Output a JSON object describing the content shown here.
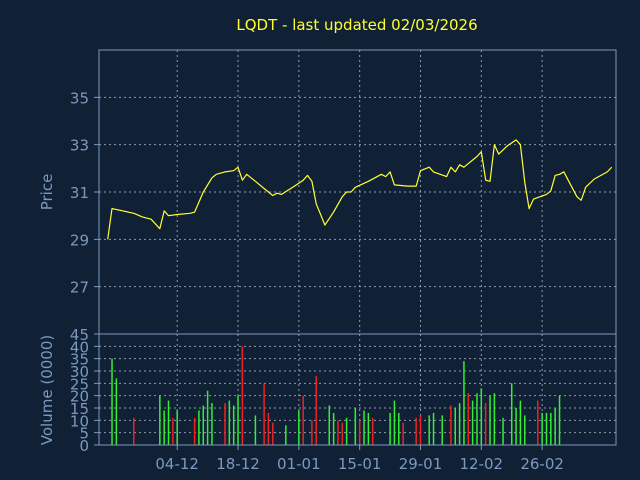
{
  "chart_data": [
    {
      "type": "line",
      "title": "LQDT - last updated 02/03/2026",
      "ylabel": "Price",
      "ylim": [
        25,
        37
      ],
      "yticks": [
        27,
        29,
        31,
        33,
        35
      ],
      "grid": true,
      "line_color": "#ffff33",
      "series": [
        {
          "points": [
            [
              "2025-11-18",
              29.0
            ],
            [
              "2025-11-19",
              30.3
            ],
            [
              "2025-11-24",
              30.1
            ],
            [
              "2025-11-26",
              29.95
            ],
            [
              "2025-11-28",
              29.85
            ],
            [
              "2025-11-30",
              29.45
            ],
            [
              "2025-12-01",
              30.2
            ],
            [
              "2025-12-02",
              30.0
            ],
            [
              "2025-12-04",
              30.05
            ],
            [
              "2025-12-07",
              30.1
            ],
            [
              "2025-12-08",
              30.15
            ],
            [
              "2025-12-10",
              31.0
            ],
            [
              "2025-12-12",
              31.6
            ],
            [
              "2025-12-13",
              31.75
            ],
            [
              "2025-12-15",
              31.85
            ],
            [
              "2025-12-17",
              31.9
            ],
            [
              "2025-12-18",
              32.05
            ],
            [
              "2025-12-19",
              31.5
            ],
            [
              "2025-12-20",
              31.75
            ],
            [
              "2025-12-22",
              31.45
            ],
            [
              "2025-12-24",
              31.15
            ],
            [
              "2025-12-26",
              30.85
            ],
            [
              "2025-12-27",
              30.95
            ],
            [
              "2025-12-28",
              30.9
            ],
            [
              "2025-12-31",
              31.25
            ],
            [
              "2026-01-02",
              31.5
            ],
            [
              "2026-01-03",
              31.7
            ],
            [
              "2026-01-04",
              31.45
            ],
            [
              "2026-01-05",
              30.5
            ],
            [
              "2026-01-06",
              30.05
            ],
            [
              "2026-01-07",
              29.6
            ],
            [
              "2026-01-09",
              30.15
            ],
            [
              "2026-01-11",
              30.8
            ],
            [
              "2026-01-12",
              31.0
            ],
            [
              "2026-01-13",
              31.0
            ],
            [
              "2026-01-14",
              31.2
            ],
            [
              "2026-01-17",
              31.45
            ],
            [
              "2026-01-20",
              31.75
            ],
            [
              "2026-01-21",
              31.65
            ],
            [
              "2026-01-22",
              31.85
            ],
            [
              "2026-01-23",
              31.3
            ],
            [
              "2026-01-26",
              31.25
            ],
            [
              "2026-01-28",
              31.25
            ],
            [
              "2026-01-29",
              31.9
            ],
            [
              "2026-01-31",
              32.05
            ],
            [
              "2026-02-01",
              31.85
            ],
            [
              "2026-02-04",
              31.65
            ],
            [
              "2026-02-05",
              32.05
            ],
            [
              "2026-02-06",
              31.85
            ],
            [
              "2026-02-07",
              32.15
            ],
            [
              "2026-02-08",
              32.05
            ],
            [
              "2026-02-11",
              32.5
            ],
            [
              "2026-02-12",
              32.7
            ],
            [
              "2026-02-13",
              31.5
            ],
            [
              "2026-02-14",
              31.45
            ],
            [
              "2026-02-15",
              33.0
            ],
            [
              "2026-02-16",
              32.6
            ],
            [
              "2026-02-18",
              32.95
            ],
            [
              "2026-02-20",
              33.2
            ],
            [
              "2026-02-21",
              33.0
            ],
            [
              "2026-02-22",
              31.4
            ],
            [
              "2026-02-23",
              30.3
            ],
            [
              "2026-02-24",
              30.7
            ],
            [
              "2026-02-27",
              30.9
            ],
            [
              "2026-02-28",
              31.05
            ],
            [
              "2026-03-01",
              31.7
            ],
            [
              "2026-03-02",
              31.75
            ],
            [
              "2026-03-03",
              31.85
            ],
            [
              "2026-03-04",
              31.5
            ],
            [
              "2026-03-06",
              30.8
            ],
            [
              "2026-03-07",
              30.65
            ],
            [
              "2026-03-08",
              31.2
            ],
            [
              "2026-03-10",
              31.55
            ],
            [
              "2026-03-13",
              31.85
            ],
            [
              "2026-03-14",
              32.05
            ]
          ]
        }
      ]
    },
    {
      "type": "bar",
      "ylabel": "Volume (0000)",
      "ylim": [
        0,
        45
      ],
      "yticks": [
        0,
        5,
        10,
        15,
        20,
        25,
        30,
        35,
        40,
        45
      ],
      "grid": true,
      "up_color": "#33ee33",
      "down_color": "#ee2222",
      "bars": [
        [
          "2025-11-19",
          35,
          "up"
        ],
        [
          "2025-11-20",
          27,
          "up"
        ],
        [
          "2025-11-24",
          11,
          "down"
        ],
        [
          "2025-11-30",
          20,
          "up"
        ],
        [
          "2025-12-01",
          14,
          "up"
        ],
        [
          "2025-12-02",
          18,
          "up"
        ],
        [
          "2025-12-03",
          11,
          "down"
        ],
        [
          "2025-12-04",
          14,
          "up"
        ],
        [
          "2025-12-08",
          11,
          "down"
        ],
        [
          "2025-12-09",
          14,
          "up"
        ],
        [
          "2025-12-10",
          16,
          "up"
        ],
        [
          "2025-12-11",
          22,
          "up"
        ],
        [
          "2025-12-12",
          17,
          "up"
        ],
        [
          "2025-12-15",
          17,
          "down"
        ],
        [
          "2025-12-16",
          18,
          "up"
        ],
        [
          "2025-12-17",
          16,
          "up"
        ],
        [
          "2025-12-18",
          20,
          "up"
        ],
        [
          "2025-12-19",
          40,
          "down"
        ],
        [
          "2025-12-22",
          12,
          "up"
        ],
        [
          "2025-12-24",
          25,
          "down"
        ],
        [
          "2025-12-25",
          13,
          "down"
        ],
        [
          "2025-12-26",
          9,
          "down"
        ],
        [
          "2025-12-29",
          8,
          "up"
        ],
        [
          "2026-01-01",
          14,
          "up"
        ],
        [
          "2026-01-02",
          20,
          "down"
        ],
        [
          "2026-01-04",
          10,
          "down"
        ],
        [
          "2026-01-05",
          28,
          "down"
        ],
        [
          "2026-01-08",
          16,
          "up"
        ],
        [
          "2026-01-09",
          13,
          "up"
        ],
        [
          "2026-01-10",
          10,
          "down"
        ],
        [
          "2026-01-11",
          9,
          "down"
        ],
        [
          "2026-01-12",
          11,
          "up"
        ],
        [
          "2026-01-14",
          15,
          "up"
        ],
        [
          "2026-01-15",
          10,
          "down"
        ],
        [
          "2026-01-16",
          14,
          "up"
        ],
        [
          "2026-01-17",
          13,
          "up"
        ],
        [
          "2026-01-18",
          11,
          "down"
        ],
        [
          "2026-01-22",
          13,
          "up"
        ],
        [
          "2026-01-23",
          18,
          "up"
        ],
        [
          "2026-01-24",
          13,
          "up"
        ],
        [
          "2026-01-25",
          9,
          "down"
        ],
        [
          "2026-01-28",
          11,
          "down"
        ],
        [
          "2026-01-29",
          12,
          "down"
        ],
        [
          "2026-01-31",
          12,
          "up"
        ],
        [
          "2026-02-01",
          13,
          "up"
        ],
        [
          "2026-02-03",
          12,
          "up"
        ],
        [
          "2026-02-05",
          16,
          "down"
        ],
        [
          "2026-02-06",
          15,
          "up"
        ],
        [
          "2026-02-07",
          17,
          "up"
        ],
        [
          "2026-02-08",
          34,
          "up"
        ],
        [
          "2026-02-09",
          21,
          "down"
        ],
        [
          "2026-02-10",
          18,
          "up"
        ],
        [
          "2026-02-11",
          21,
          "up"
        ],
        [
          "2026-02-12",
          23,
          "up"
        ],
        [
          "2026-02-13",
          17,
          "down"
        ],
        [
          "2026-02-14",
          20,
          "up"
        ],
        [
          "2026-02-15",
          21,
          "up"
        ],
        [
          "2026-02-17",
          11,
          "up"
        ],
        [
          "2026-02-19",
          25,
          "up"
        ],
        [
          "2026-02-20",
          15,
          "up"
        ],
        [
          "2026-02-21",
          18,
          "up"
        ],
        [
          "2026-02-22",
          12,
          "up"
        ],
        [
          "2026-02-25",
          18,
          "down"
        ],
        [
          "2026-02-26",
          13,
          "up"
        ],
        [
          "2026-02-27",
          13,
          "up"
        ],
        [
          "2026-02-28",
          13,
          "up"
        ],
        [
          "2026-03-01",
          15,
          "up"
        ],
        [
          "2026-03-02",
          20,
          "up"
        ]
      ],
      "x_tick_labels": [
        [
          "2025-12-04",
          "04-12"
        ],
        [
          "2025-12-18",
          "18-12"
        ],
        [
          "2026-01-01",
          "01-01"
        ],
        [
          "2026-01-15",
          "15-01"
        ],
        [
          "2026-01-29",
          "29-01"
        ],
        [
          "2026-02-12",
          "12-02"
        ],
        [
          "2026-02-26",
          "26-02"
        ]
      ]
    }
  ]
}
